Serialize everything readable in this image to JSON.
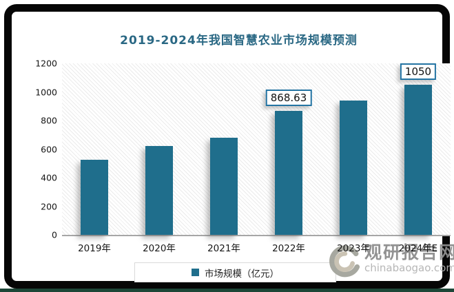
{
  "title": "2019-2024年我国智慧农业市场规模预测",
  "chart_data": {
    "type": "bar",
    "title": "2019-2024年我国智慧农业市场规模预测",
    "categories": [
      "2019年",
      "2020年",
      "2021年",
      "2022年",
      "2023年",
      "2024年E"
    ],
    "values": [
      525,
      620,
      682,
      868.63,
      941,
      1050
    ],
    "point_labels": [
      "",
      "",
      "",
      "868.63",
      "",
      "1050"
    ],
    "xlabel": "",
    "ylabel": "",
    "ylim": [
      0,
      1200
    ],
    "yticks": [
      0,
      200,
      400,
      600,
      800,
      1000,
      1200
    ],
    "grid": false,
    "legend_position": "bottom",
    "legend_entries": [
      "市场规模（亿元）"
    ],
    "bar_color": "#1f6e8c",
    "plot_background": "diagonal-hatch"
  },
  "legend": {
    "label": "市场规模（亿元）",
    "marker_color": "#1f6e8c"
  },
  "watermark": {
    "name": "观研报告网",
    "domain": "chinabaogao.com",
    "logo": "swirl-logo"
  },
  "colors": {
    "bar": "#1f6e8c",
    "title": "#2a6884",
    "label_box_border": "#2374a3",
    "axis_line": "#a6a6a6",
    "frame": "#060606",
    "bottom_strip": "#1d4637"
  }
}
